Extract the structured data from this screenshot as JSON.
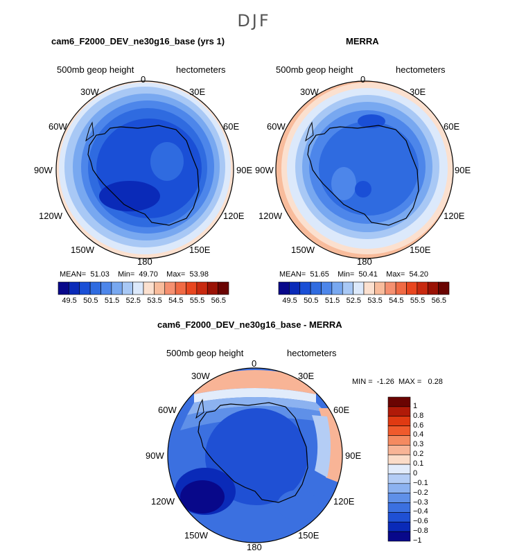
{
  "figure_title": "DJF",
  "lon_labels": [
    "0",
    "30E",
    "60E",
    "90E",
    "120E",
    "150E",
    "180",
    "150W",
    "120W",
    "90W",
    "60W",
    "30W"
  ],
  "panels": [
    {
      "title": "cam6_F2000_DEV_ne30g16_base (yrs 1)",
      "variable": "500mb geop height",
      "units": "hectometers",
      "mean_label": "MEAN=",
      "mean": "51.03",
      "min_label": "Min=",
      "min": "49.70",
      "max_label": "Max=",
      "max": "53.98",
      "colorbar_ticks": [
        "49.5",
        "50.5",
        "51.5",
        "52.5",
        "53.5",
        "54.5",
        "55.5",
        "56.5"
      ]
    },
    {
      "title": "MERRA",
      "variable": "500mb geop height",
      "units": "hectometers",
      "mean_label": "MEAN=",
      "mean": "51.65",
      "min_label": "Min=",
      "min": "50.41",
      "max_label": "Max=",
      "max": "54.20",
      "colorbar_ticks": [
        "49.5",
        "50.5",
        "51.5",
        "52.5",
        "53.5",
        "54.5",
        "55.5",
        "56.5"
      ]
    },
    {
      "title": "cam6_F2000_DEV_ne30g16_base - MERRA",
      "variable": "500mb geop height",
      "units": "hectometers",
      "min_label": "MIN =",
      "min": "-1.26",
      "max_label": "MAX =",
      "max": "0.28",
      "colorbar_ticks": [
        "1",
        "0.8",
        "0.6",
        "0.4",
        "0.3",
        "0.2",
        "0.1",
        "0",
        "−0.1",
        "−0.2",
        "−0.3",
        "−0.4",
        "−0.6",
        "−0.8",
        "−1"
      ]
    }
  ],
  "colors": {
    "abs_scale": [
      "#08088a",
      "#0a2ab8",
      "#1a4fd6",
      "#2f6be0",
      "#4d86ea",
      "#78a8f0",
      "#a8c8f5",
      "#dce9fb",
      "#fbe0cf",
      "#f8bc9c",
      "#f59070",
      "#f06a44",
      "#e8461f",
      "#c82a10",
      "#9a1205",
      "#6a0402"
    ],
    "diff_scale": [
      "#6a0402",
      "#b01a08",
      "#e03a12",
      "#f05a2c",
      "#f58a60",
      "#f8b496",
      "#fbdcc8",
      "#e2ecfb",
      "#b4cdf5",
      "#8cb2f0",
      "#5f90e8",
      "#3b70e0",
      "#1f50d4",
      "#0a2ab8",
      "#08088a"
    ],
    "ocean_deep": "#1c44c8",
    "coast": "#000000"
  },
  "chart_data": {
    "type": "contour-map",
    "projection": "south-polar-stereographic",
    "season": "DJF",
    "maps": [
      {
        "name": "cam6_F2000_DEV_ne30g16_base (yrs 1)",
        "field": "500mb geop height",
        "units": "hectometers",
        "mean": 51.03,
        "min": 49.7,
        "max": 53.98,
        "levels": [
          49.5,
          50.5,
          51.5,
          52.5,
          53.5,
          54.5,
          55.5,
          56.5
        ]
      },
      {
        "name": "MERRA",
        "field": "500mb geop height",
        "units": "hectometers",
        "mean": 51.65,
        "min": 50.41,
        "max": 54.2,
        "levels": [
          49.5,
          50.5,
          51.5,
          52.5,
          53.5,
          54.5,
          55.5,
          56.5
        ]
      },
      {
        "name": "cam6_F2000_DEV_ne30g16_base - MERRA",
        "field": "500mb geop height",
        "units": "hectometers",
        "min": -1.26,
        "max": 0.28,
        "levels": [
          -1,
          -0.8,
          -0.6,
          -0.4,
          -0.3,
          -0.2,
          -0.1,
          0,
          0.1,
          0.2,
          0.3,
          0.4,
          0.6,
          0.8,
          1
        ]
      }
    ]
  }
}
